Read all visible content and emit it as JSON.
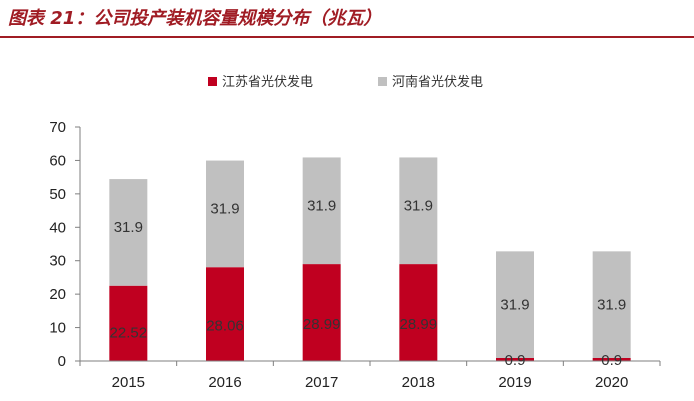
{
  "figure_title": "图表 21：公司投产装机容量规模分布（兆瓦）",
  "chart_data": {
    "type": "bar",
    "stacked": true,
    "categories": [
      "2015",
      "2016",
      "2017",
      "2018",
      "2019",
      "2020"
    ],
    "series": [
      {
        "name": "江苏省光伏发电",
        "color": "#c00020",
        "values": [
          22.52,
          28.06,
          28.99,
          28.99,
          0.9,
          0.9
        ],
        "labels": [
          "22.52",
          "28.06",
          "28.99",
          "28.99",
          "0.9",
          "0.9"
        ]
      },
      {
        "name": "河南省光伏发电",
        "color": "#c0c0c0",
        "values": [
          31.9,
          31.9,
          31.9,
          31.9,
          31.9,
          31.9
        ],
        "labels": [
          "31.9",
          "31.9",
          "31.9",
          "31.9",
          "31.9",
          "31.9"
        ]
      }
    ],
    "ylim": [
      0,
      70
    ],
    "yticks": [
      0,
      10,
      20,
      30,
      40,
      50,
      60,
      70
    ],
    "legend_position": "top-center",
    "grid": false
  }
}
